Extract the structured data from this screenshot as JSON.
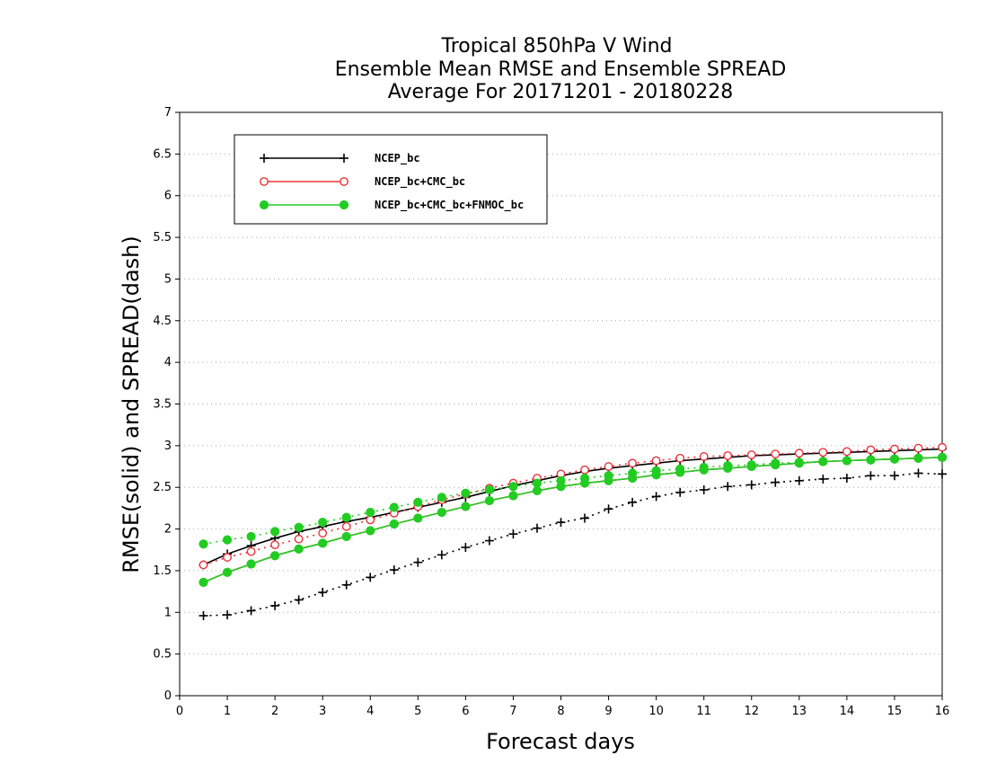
{
  "chart_data": {
    "type": "line",
    "title": [
      "Tropical 850hPa V Wind",
      "Ensemble Mean RMSE and Ensemble SPREAD",
      "Average For 20171201 - 20180228"
    ],
    "xlabel": "Forecast days",
    "ylabel": "RMSE(solid) and SPREAD(dash)",
    "xlim": [
      0,
      16
    ],
    "ylim": [
      0,
      7
    ],
    "xticks": [
      0,
      1,
      2,
      3,
      4,
      5,
      6,
      7,
      8,
      9,
      10,
      11,
      12,
      13,
      14,
      15,
      16
    ],
    "xtick_labels": [
      "0",
      "1",
      "2",
      "3",
      "4",
      "5",
      "6",
      "7",
      "8",
      "9",
      "10",
      "11",
      "12",
      "13",
      "14",
      "15",
      "16"
    ],
    "yticks": [
      0,
      0.5,
      1,
      1.5,
      2,
      2.5,
      3,
      3.5,
      4,
      4.5,
      5,
      5.5,
      6,
      6.5,
      7
    ],
    "ytick_labels": [
      "0",
      "0.5",
      "1",
      "1.5",
      "2",
      "2.5",
      "3",
      "3.5",
      "4",
      "4.5",
      "5",
      "5.5",
      "6",
      "6.5",
      "7"
    ],
    "grid": "horizontal dotted",
    "legend_position": "top-left",
    "x": [
      0.5,
      1,
      1.5,
      2,
      2.5,
      3,
      3.5,
      4,
      4.5,
      5,
      5.5,
      6,
      6.5,
      7,
      7.5,
      8,
      8.5,
      9,
      9.5,
      10,
      10.5,
      11,
      11.5,
      12,
      12.5,
      13,
      13.5,
      14,
      14.5,
      15,
      15.5,
      16
    ],
    "series": [
      {
        "name": "NCEP_bc",
        "color": "#000000",
        "marker": "plus",
        "rmse": [
          1.57,
          1.7,
          1.8,
          1.89,
          1.97,
          2.03,
          2.09,
          2.14,
          2.2,
          2.26,
          2.32,
          2.38,
          2.45,
          2.52,
          2.58,
          2.64,
          2.69,
          2.73,
          2.76,
          2.79,
          2.82,
          2.84,
          2.86,
          2.88,
          2.89,
          2.9,
          2.91,
          2.92,
          2.93,
          2.94,
          2.95,
          2.96
        ],
        "spread": [
          0.96,
          0.97,
          1.02,
          1.08,
          1.15,
          1.24,
          1.33,
          1.42,
          1.51,
          1.6,
          1.69,
          1.78,
          1.86,
          1.94,
          2.01,
          2.08,
          2.13,
          2.24,
          2.32,
          2.39,
          2.44,
          2.47,
          2.51,
          2.53,
          2.56,
          2.58,
          2.6,
          2.61,
          2.64,
          2.64,
          2.67,
          2.66
        ]
      },
      {
        "name": "NCEP_bc+CMC_bc",
        "color": "#e8333a",
        "marker": "open-circle",
        "rmse": [
          1.36,
          1.48,
          1.58,
          1.68,
          1.76,
          1.83,
          1.91,
          1.98,
          2.06,
          2.13,
          2.2,
          2.27,
          2.34,
          2.4,
          2.46,
          2.51,
          2.55,
          2.58,
          2.61,
          2.65,
          2.68,
          2.71,
          2.73,
          2.75,
          2.77,
          2.79,
          2.81,
          2.82,
          2.83,
          2.84,
          2.85,
          2.86
        ],
        "spread": [
          1.57,
          1.66,
          1.73,
          1.81,
          1.88,
          1.95,
          2.03,
          2.11,
          2.19,
          2.27,
          2.35,
          2.42,
          2.49,
          2.55,
          2.61,
          2.66,
          2.71,
          2.75,
          2.79,
          2.82,
          2.85,
          2.87,
          2.88,
          2.89,
          2.9,
          2.91,
          2.92,
          2.93,
          2.95,
          2.96,
          2.97,
          2.98
        ]
      },
      {
        "name": "NCEP_bc+CMC_bc+FNMOC_bc",
        "color": "#22cc22",
        "marker": "filled-circle",
        "rmse": [
          1.36,
          1.48,
          1.58,
          1.68,
          1.76,
          1.83,
          1.91,
          1.98,
          2.06,
          2.13,
          2.2,
          2.27,
          2.34,
          2.4,
          2.46,
          2.51,
          2.55,
          2.58,
          2.61,
          2.65,
          2.68,
          2.71,
          2.73,
          2.75,
          2.77,
          2.79,
          2.81,
          2.82,
          2.83,
          2.84,
          2.85,
          2.86
        ],
        "spread": [
          1.82,
          1.87,
          1.91,
          1.97,
          2.02,
          2.08,
          2.14,
          2.2,
          2.26,
          2.32,
          2.38,
          2.43,
          2.47,
          2.51,
          2.55,
          2.58,
          2.61,
          2.64,
          2.67,
          2.7,
          2.72,
          2.74,
          2.76,
          2.77,
          2.79,
          2.8,
          2.81,
          2.82,
          2.83,
          2.84,
          2.85,
          2.86
        ]
      }
    ]
  }
}
